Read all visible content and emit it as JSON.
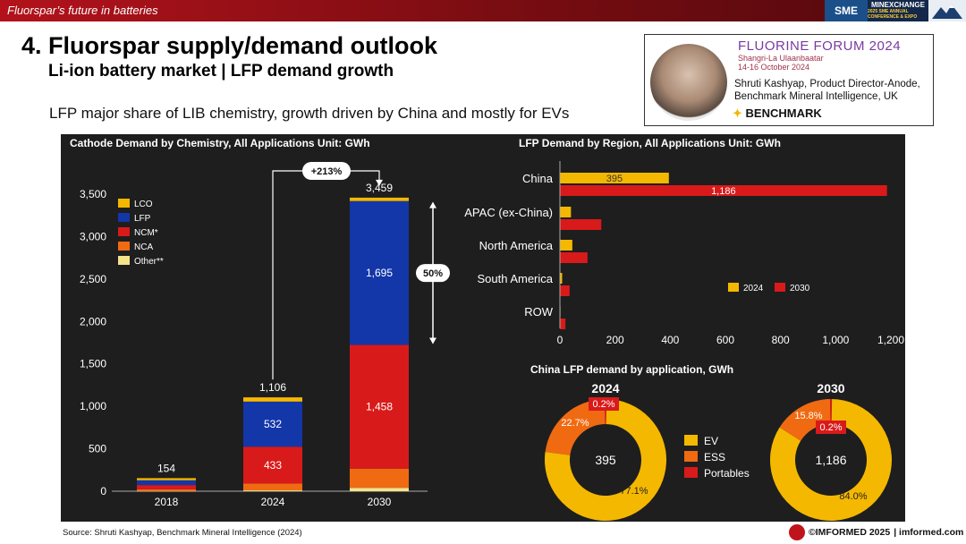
{
  "header": {
    "section": "Fluorspar’s future in batteries",
    "logo_sme": "SME",
    "logo_mx": "MINEXCHANGE",
    "logo_mx_sub": "2025 SME ANNUAL CONFERENCE & EXPO"
  },
  "title": "4. Fluorspar supply/demand outlook",
  "subtitle_bold": "Li-ion battery market | LFP demand growth",
  "subtitle": "LFP major share of LIB chemistry, growth driven by China and mostly for EVs",
  "speaker": {
    "forum": "FLUORINE FORUM 2024",
    "venue": "Shangri-La Ulaanbaatar",
    "dates": "14-16 October 2024",
    "name_line1": "Shruti Kashyap, Product Director-Anode,",
    "name_line2": "Benchmark Mineral Intelligence, UK",
    "company": "BENCHMARK"
  },
  "colors": {
    "LCO": "#f5b800",
    "LFP": "#1336a8",
    "NCM": "#d91a1a",
    "NCA": "#f06a12",
    "Other": "#f4e38a",
    "y2024": "#f5b800",
    "y2030": "#d91a1a",
    "EV": "#f5b800",
    "ESS": "#f06a12",
    "Portables": "#d91a1a"
  },
  "chart_data": [
    {
      "type": "bar",
      "stacked": true,
      "title": "Cathode Demand by Chemistry, All Applications Unit: GWh",
      "categories": [
        "2018",
        "2024",
        "2030"
      ],
      "series": [
        {
          "name": "Other**",
          "values": [
            2,
            10,
            40
          ]
        },
        {
          "name": "NCA",
          "values": [
            20,
            81,
            226
          ]
        },
        {
          "name": "NCM*",
          "values": [
            50,
            433,
            1458
          ]
        },
        {
          "name": "LFP",
          "values": [
            57,
            532,
            1695
          ]
        },
        {
          "name": "LCO",
          "values": [
            25,
            50,
            40
          ]
        }
      ],
      "totals": [
        "154",
        "1,106",
        "3,459"
      ],
      "segment_labels": {
        "2024": {
          "NCM*": "433",
          "LFP": "532"
        },
        "2030": {
          "NCM*": "1,458",
          "LFP": "1,695"
        }
      },
      "ylim": [
        0,
        3500
      ],
      "yticks": [
        "0",
        "500",
        "1,000",
        "1,500",
        "2,000",
        "2,500",
        "3,000",
        "3,500"
      ],
      "legend": [
        "LCO",
        "LFP",
        "NCM*",
        "NCA",
        "Other**"
      ],
      "annotations": {
        "growth": "+213%",
        "lfp_share": "50%"
      }
    },
    {
      "type": "bar",
      "orientation": "horizontal",
      "title": "LFP Demand by Region, All Applications Unit: GWh",
      "categories": [
        "China",
        "APAC (ex-China)",
        "North America",
        "South America",
        "ROW"
      ],
      "series": [
        {
          "name": "2024",
          "values": [
            395,
            40,
            45,
            8,
            2
          ]
        },
        {
          "name": "2030",
          "values": [
            1186,
            150,
            100,
            35,
            20
          ]
        }
      ],
      "value_labels": {
        "China_2024": "395",
        "China_2030": "1,186"
      },
      "xlim": [
        0,
        1200
      ],
      "xticks": [
        "0",
        "200",
        "400",
        "600",
        "800",
        "1,000",
        "1,200"
      ]
    },
    {
      "type": "pie",
      "title": "China LFP demand by application, GWh",
      "legend": [
        "EV",
        "ESS",
        "Portables"
      ],
      "donuts": [
        {
          "year": "2024",
          "total": "395",
          "slices": [
            {
              "name": "EV",
              "value": 77.1,
              "label": "77.1%"
            },
            {
              "name": "ESS",
              "value": 22.7,
              "label": "22.7%"
            },
            {
              "name": "Portables",
              "value": 0.2,
              "label": "0.2%"
            }
          ]
        },
        {
          "year": "2030",
          "total": "1,186",
          "slices": [
            {
              "name": "EV",
              "value": 84.0,
              "label": "84.0%"
            },
            {
              "name": "ESS",
              "value": 15.8,
              "label": "15.8%"
            },
            {
              "name": "Portables",
              "value": 0.2,
              "label": "0.2%"
            }
          ]
        }
      ]
    }
  ],
  "source": "Source: Shruti Kashyap, Benchmark Mineral Intelligence (2024)",
  "footer": {
    "brand": "©IMFORMED 2025",
    "url": "| imformed.com"
  }
}
